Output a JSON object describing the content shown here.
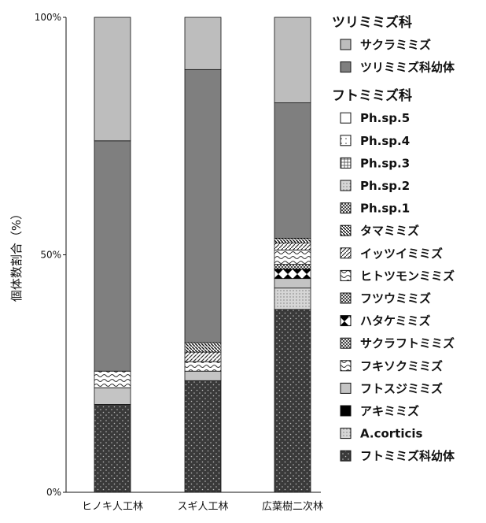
{
  "chart_data": {
    "type": "bar",
    "stacked": true,
    "ylabel": "個体数割合（%）",
    "ylim": [
      0,
      100
    ],
    "yticks": [
      "0%",
      "50%",
      "100%"
    ],
    "categories": [
      "ヒノキ人工林",
      "スギ人工林",
      "広葉樹二次林"
    ],
    "legend_groups": [
      {
        "name": "ツリミミズ科",
        "series": [
          "サクラミミズ",
          "ツリミミズ科幼体"
        ]
      },
      {
        "name": "フトミミズ科",
        "series": [
          "Ph.sp.5",
          "Ph.sp.4",
          "Ph.sp.3",
          "Ph.sp.2",
          "Ph.sp.1",
          "タマミミズ",
          "イッツイミミズ",
          "ヒトツモンミミズ",
          "フツウミミズ",
          "ハタケミミズ",
          "サクラフトミミズ",
          "フキソクミミズ",
          "フトスジミミズ",
          "アキミミズ",
          "A.corticis",
          "フトミミズ科幼体"
        ]
      }
    ],
    "series": [
      {
        "name": "フトミミズ科幼体",
        "values": [
          18.5,
          23.5,
          38.5
        ],
        "color": "#3a3a3a",
        "pattern": "dots"
      },
      {
        "name": "A.corticis",
        "values": [
          0,
          0,
          4.5
        ],
        "color": "#c8c8c8",
        "pattern": "fine-dots"
      },
      {
        "name": "アキミミズ",
        "values": [
          0,
          0,
          0
        ],
        "color": "#000000",
        "pattern": "solid"
      },
      {
        "name": "フトスジミミズ",
        "values": [
          3.5,
          2.0,
          2.0
        ],
        "color": "#c4c4c4",
        "pattern": "solid"
      },
      {
        "name": "フキソクミミズ",
        "values": [
          0,
          0,
          0
        ],
        "color": "#ffffff",
        "pattern": "wave"
      },
      {
        "name": "サクラフトミミズ",
        "values": [
          0,
          0,
          0
        ],
        "color": "#999999",
        "pattern": "checker"
      },
      {
        "name": "ハタケミミズ",
        "values": [
          0,
          0,
          2.0
        ],
        "color": "#ffffff",
        "pattern": "diamond"
      },
      {
        "name": "フツウミミズ",
        "values": [
          0,
          0,
          1.0
        ],
        "color": "#555555",
        "pattern": "checker"
      },
      {
        "name": "ヒトツモンミミズ",
        "values": [
          3.5,
          2.0,
          3.0
        ],
        "color": "#ffffff",
        "pattern": "wave"
      },
      {
        "name": "イッツイミミズ",
        "values": [
          0,
          2.0,
          1.5
        ],
        "color": "#ffffff",
        "pattern": "diag"
      },
      {
        "name": "タマミミズ",
        "values": [
          0,
          2.0,
          1.0
        ],
        "color": "#ffffff",
        "pattern": "diag-dense"
      },
      {
        "name": "Ph.sp.1",
        "values": [
          0,
          0,
          0
        ],
        "color": "#888888",
        "pattern": "checker"
      },
      {
        "name": "Ph.sp.2",
        "values": [
          0,
          0,
          0
        ],
        "color": "#ffffff",
        "pattern": "fine-dots"
      },
      {
        "name": "Ph.sp.3",
        "values": [
          0,
          0,
          0
        ],
        "color": "#ffffff",
        "pattern": "grid"
      },
      {
        "name": "Ph.sp.4",
        "values": [
          0,
          0,
          0
        ],
        "color": "#ffffff",
        "pattern": "sparse-dots"
      },
      {
        "name": "Ph.sp.5",
        "values": [
          0,
          0,
          0
        ],
        "color": "#ffffff",
        "pattern": "solid"
      },
      {
        "name": "ツリミミズ科幼体",
        "values": [
          48.5,
          57.5,
          28.5
        ],
        "color": "#7f7f7f",
        "pattern": "solid"
      },
      {
        "name": "サクラミミズ",
        "values": [
          26.0,
          11.0,
          18.0
        ],
        "color": "#bdbdbd",
        "pattern": "solid"
      }
    ]
  }
}
